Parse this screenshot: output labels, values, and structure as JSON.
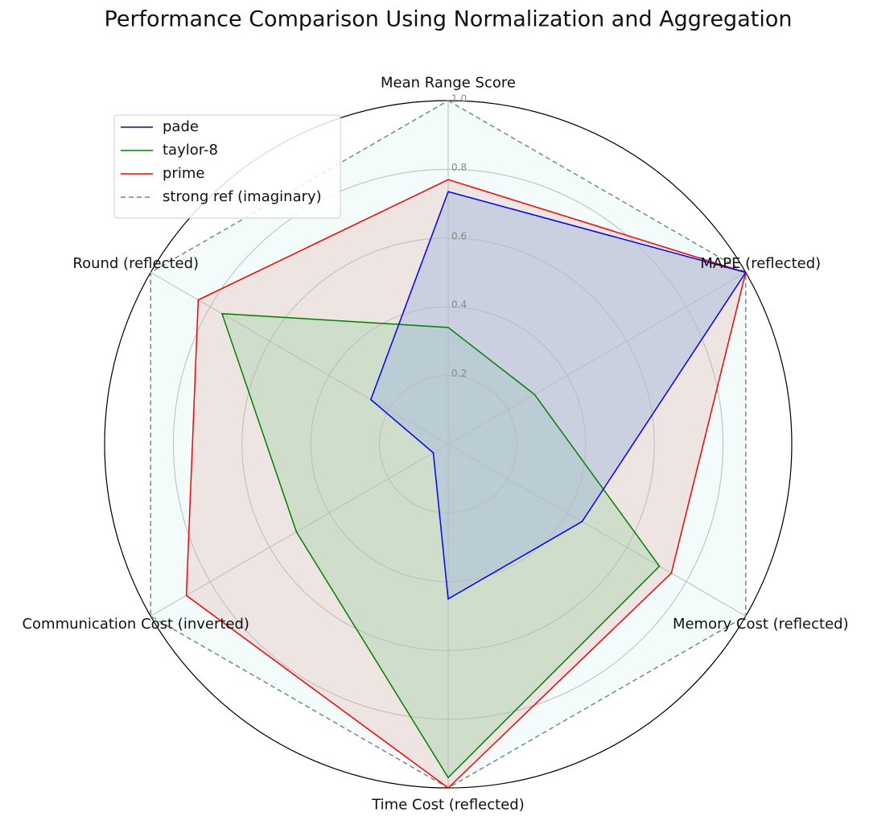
{
  "chart_data": {
    "type": "radar",
    "title": "Performance Comparison Using Normalization and Aggregation",
    "categories": [
      "Mean Range Score",
      "MAPE (reflected)",
      "Memory Cost (reflected)",
      "Time Cost (reflected)",
      "Communication Cost (inverted)",
      "Round (reflected)"
    ],
    "series": [
      {
        "name": "pade",
        "color": "#0000ff",
        "fill": "#9fb8e0",
        "values": [
          0.735,
          1.0,
          0.45,
          0.45,
          0.05,
          0.26
        ]
      },
      {
        "name": "taylor-8",
        "color": "#008000",
        "fill": "#a8d8b0",
        "values": [
          0.34,
          0.29,
          0.71,
          0.97,
          0.51,
          0.76
        ]
      },
      {
        "name": "prime",
        "color": "#ff0000",
        "fill": "#e8c8c0",
        "values": [
          0.77,
          1.0,
          0.75,
          1.0,
          0.88,
          0.84
        ]
      },
      {
        "name": "strong ref (imaginary)",
        "color": "#708a80",
        "fill": "#e4f6f6",
        "linestyle": "dashed",
        "values": [
          1,
          1,
          1,
          1,
          1,
          1
        ]
      }
    ],
    "ylim": [
      0,
      1
    ],
    "yticks": [
      0.2,
      0.4,
      0.6,
      0.8,
      {
        "value": 1,
        "label": "1.0"
      }
    ],
    "grid": true,
    "legend": "upper left"
  }
}
